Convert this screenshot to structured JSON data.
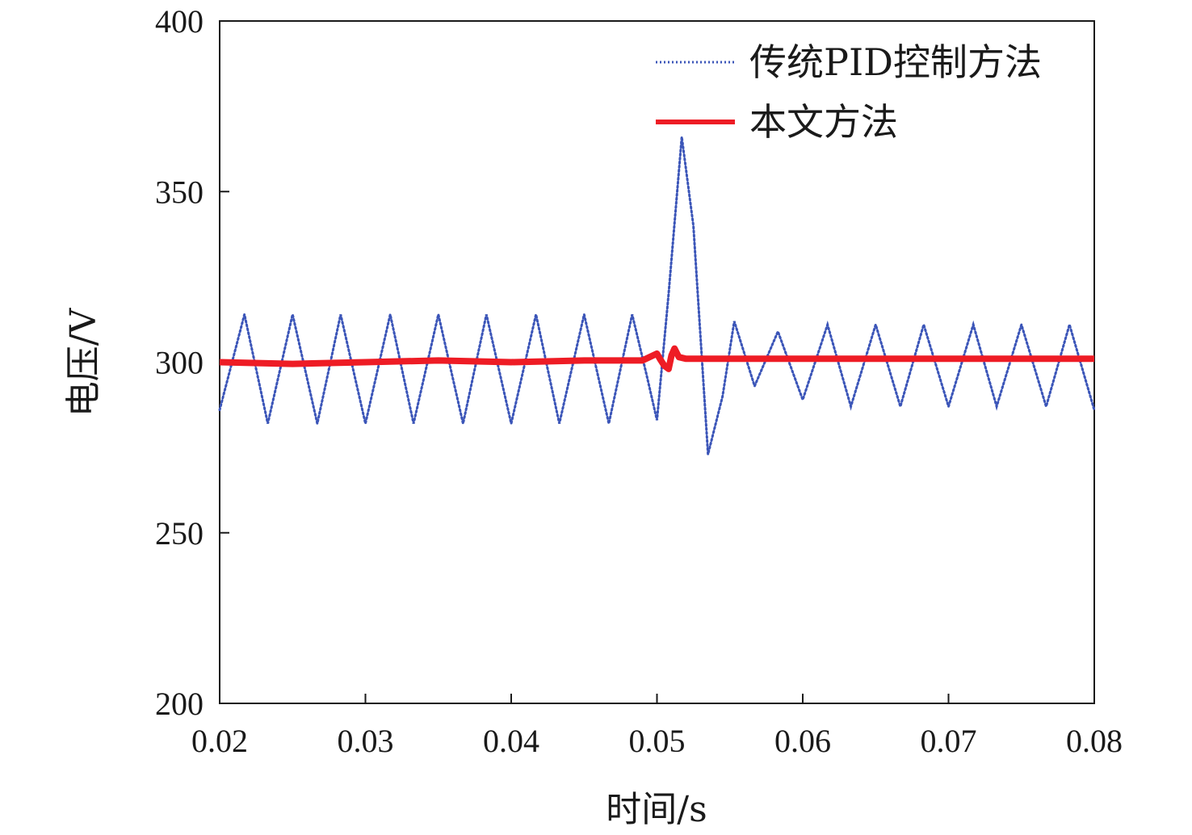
{
  "chart_data": {
    "type": "line",
    "title": "",
    "xlabel": "时间/s",
    "ylabel": "电压/V",
    "xlim": [
      0.02,
      0.08
    ],
    "ylim": [
      200,
      400
    ],
    "x_ticks": [
      "0.02",
      "0.03",
      "0.04",
      "0.05",
      "0.06",
      "0.07",
      "0.08"
    ],
    "y_ticks": [
      "200",
      "250",
      "300",
      "350",
      "400"
    ],
    "grid": false,
    "legend_position": "top-right",
    "series": [
      {
        "name": "传统PID控制方法",
        "style": "dotted",
        "color": "#3b55b8",
        "x": [
          0.02,
          0.0217,
          0.0233,
          0.025,
          0.0267,
          0.0283,
          0.03,
          0.0317,
          0.0333,
          0.035,
          0.0367,
          0.0383,
          0.04,
          0.0417,
          0.0433,
          0.045,
          0.0467,
          0.0483,
          0.0493,
          0.05,
          0.0508,
          0.0517,
          0.0525,
          0.0535,
          0.0545,
          0.0553,
          0.0567,
          0.0583,
          0.06,
          0.0617,
          0.0633,
          0.065,
          0.0667,
          0.0683,
          0.07,
          0.0717,
          0.0733,
          0.075,
          0.0767,
          0.0783,
          0.08
        ],
        "y": [
          286,
          314,
          282,
          314,
          282,
          314,
          282,
          314,
          282,
          314,
          282,
          314,
          282,
          314,
          282,
          314,
          282,
          314,
          296,
          283,
          320,
          366,
          340,
          273,
          290,
          312,
          293,
          309,
          289,
          311,
          287,
          311,
          287,
          311,
          287,
          311,
          287,
          311,
          287,
          311,
          286
        ]
      },
      {
        "name": "本文方法",
        "style": "solid",
        "color": "#ee1c25",
        "x": [
          0.02,
          0.025,
          0.03,
          0.035,
          0.04,
          0.045,
          0.049,
          0.05,
          0.0502,
          0.0505,
          0.0508,
          0.051,
          0.0512,
          0.0515,
          0.052,
          0.055,
          0.06,
          0.065,
          0.07,
          0.075,
          0.08
        ],
        "y": [
          300,
          299.5,
          300,
          300.5,
          300,
          300.5,
          300.5,
          302.5,
          301,
          299,
          298,
          302,
          304,
          301.5,
          301,
          301,
          301,
          301,
          301,
          301,
          301
        ]
      }
    ]
  }
}
